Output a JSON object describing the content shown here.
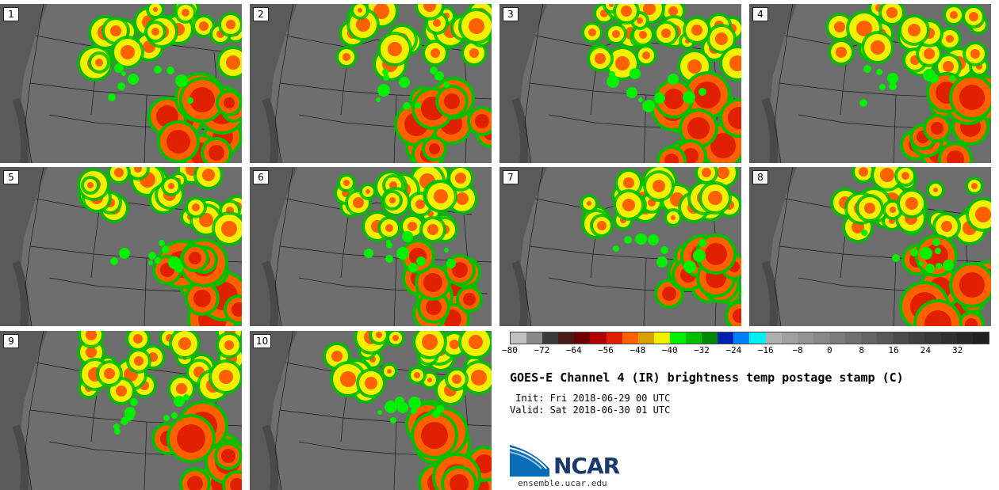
{
  "panels": [
    {
      "label": "1"
    },
    {
      "label": "2"
    },
    {
      "label": "3"
    },
    {
      "label": "4"
    },
    {
      "label": "5"
    },
    {
      "label": "6"
    },
    {
      "label": "7"
    },
    {
      "label": "8"
    },
    {
      "label": "9"
    },
    {
      "label": "10"
    }
  ],
  "colorbar": {
    "ticks": [
      "−80",
      "−72",
      "−64",
      "−56",
      "−48",
      "−40",
      "−32",
      "−24",
      "−16",
      "−8",
      "0",
      "8",
      "16",
      "24",
      "32"
    ],
    "range": [
      -80,
      40
    ],
    "colors": [
      "#c0c0c0",
      "#8a8a8a",
      "#3a3a3a",
      "#4a1a1a",
      "#6e0000",
      "#b00000",
      "#e02000",
      "#ff6000",
      "#d8a000",
      "#f0f000",
      "#00f000",
      "#00c000",
      "#008800",
      "#0020b0",
      "#0080ff",
      "#00f0f0",
      "#b0b0b0",
      "#a0a0a0",
      "#949494",
      "#888888",
      "#7c7c7c",
      "#707070",
      "#646464",
      "#585858",
      "#4c4c4c",
      "#404040",
      "#383838",
      "#303030",
      "#282828",
      "#202020"
    ]
  },
  "title": "GOES-E Channel 4 (IR) brightness temp postage stamp (C)",
  "init": " Init: Fri 2018-06-29 00 UTC",
  "valid": "Valid: Sat 2018-06-30 01 UTC",
  "logo": {
    "text": "NCAR",
    "url": "ensemble.ucar.edu"
  }
}
